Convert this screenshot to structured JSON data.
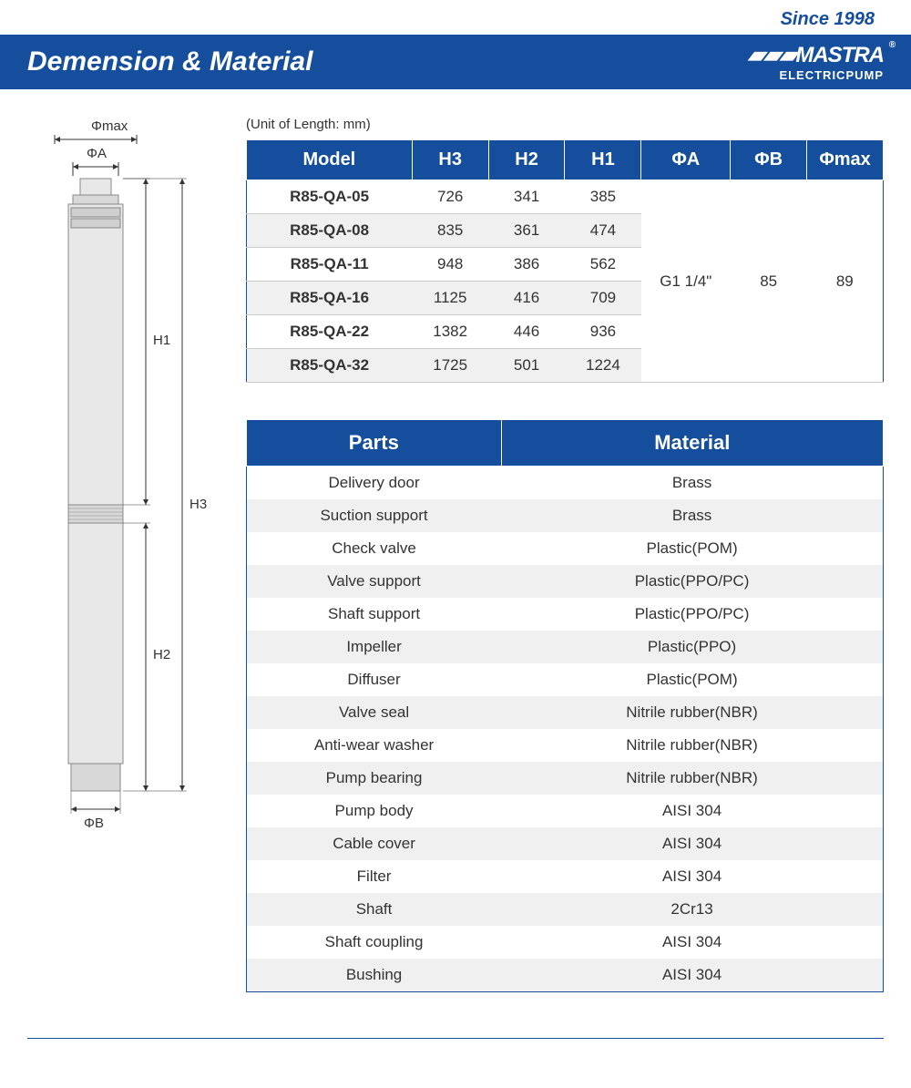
{
  "header": {
    "since": "Since 1998",
    "title": "Demension & Material",
    "brand": "MASTRA",
    "brandSub": "ELECTRICPUMP"
  },
  "unitNote": "(Unit of Length: mm)",
  "dimTable": {
    "headers": [
      "Model",
      "H3",
      "H2",
      "H1",
      "ΦA",
      "ΦB",
      "Φmax"
    ],
    "rows": [
      [
        "R85-QA-05",
        "726",
        "341",
        "385"
      ],
      [
        "R85-QA-08",
        "835",
        "361",
        "474"
      ],
      [
        "R85-QA-11",
        "948",
        "386",
        "562"
      ],
      [
        "R85-QA-16",
        "1125",
        "416",
        "709"
      ],
      [
        "R85-QA-22",
        "1382",
        "446",
        "936"
      ],
      [
        "R85-QA-32",
        "1725",
        "501",
        "1224"
      ]
    ],
    "merged": {
      "phiA": "G1 1/4\"",
      "phiB": "85",
      "phiMax": "89"
    }
  },
  "matTable": {
    "headers": [
      "Parts",
      "Material"
    ],
    "rows": [
      [
        "Delivery door",
        "Brass"
      ],
      [
        "Suction support",
        "Brass"
      ],
      [
        "Check valve",
        "Plastic(POM)"
      ],
      [
        "Valve support",
        "Plastic(PPO/PC)"
      ],
      [
        "Shaft support",
        "Plastic(PPO/PC)"
      ],
      [
        "Impeller",
        "Plastic(PPO)"
      ],
      [
        "Diffuser",
        "Plastic(POM)"
      ],
      [
        "Valve seal",
        "Nitrile rubber(NBR)"
      ],
      [
        "Anti-wear washer",
        "Nitrile rubber(NBR)"
      ],
      [
        "Pump bearing",
        "Nitrile rubber(NBR)"
      ],
      [
        "Pump body",
        "AISI 304"
      ],
      [
        "Cable cover",
        "AISI 304"
      ],
      [
        "Filter",
        "AISI 304"
      ],
      [
        "Shaft",
        "2Cr13"
      ],
      [
        "Shaft coupling",
        "AISI 304"
      ],
      [
        "Bushing",
        "AISI 304"
      ]
    ]
  },
  "diagram": {
    "labels": {
      "phiMax": "Φmax",
      "phiA": "ΦA",
      "phiB": "ΦB",
      "h1": "H1",
      "h2": "H2",
      "h3": "H3"
    },
    "colors": {
      "line": "#333333",
      "pumpFill": "#e8e8e8",
      "pumpStroke": "#888888"
    }
  },
  "style": {
    "primary": "#154e9c",
    "rowAlt": "#f0f0f0",
    "text": "#333333",
    "headerFontSize": 30,
    "tableHeaderFontSize": 20,
    "tableCellFontSize": 17
  }
}
